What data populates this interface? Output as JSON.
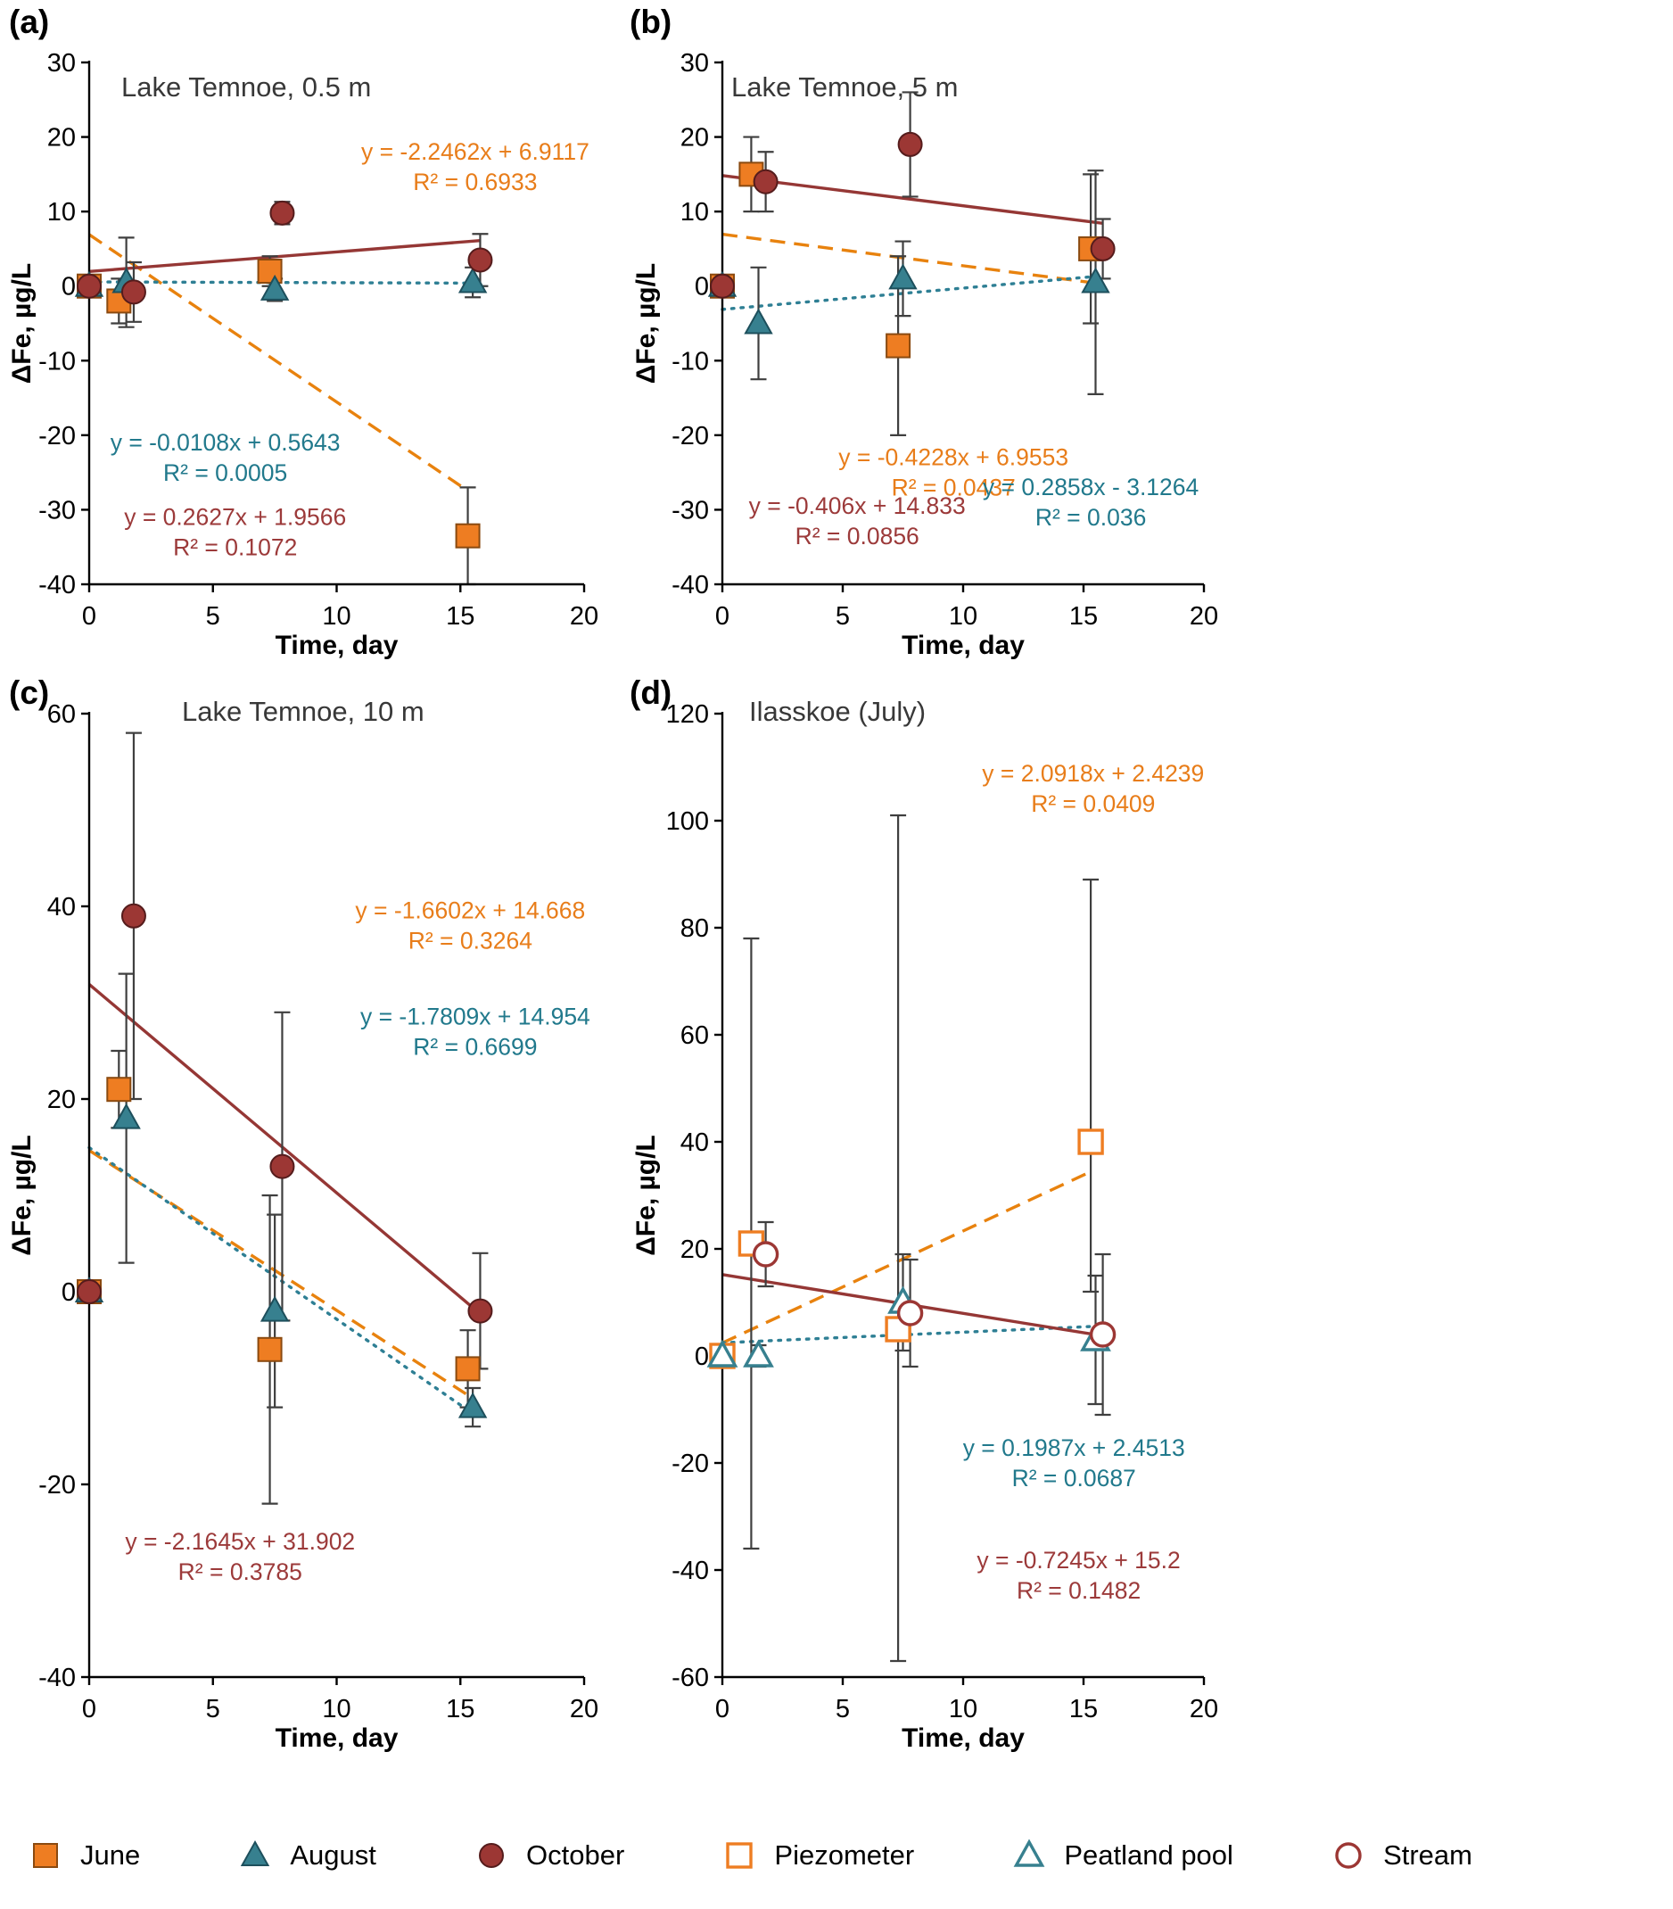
{
  "figure": {
    "background": "#FFFFFF"
  },
  "colors": {
    "orange": {
      "fill": "#EE7D22",
      "stroke": "#8A4A10",
      "line": "#E8820E",
      "text": "#E87D1A"
    },
    "teal": {
      "fill": "#37808F",
      "stroke": "#1D4F5C",
      "line": "#2E7F94",
      "text": "#21798C"
    },
    "darkred": {
      "fill": "#9C3734",
      "stroke": "#551C1C",
      "line": "#953735",
      "text": "#9C3A3A"
    },
    "axis": "#000000",
    "error": "#3F3F3F"
  },
  "legend": [
    {
      "label": "June",
      "marker": "square",
      "color": "orange",
      "filled": true
    },
    {
      "label": "August",
      "marker": "triangle",
      "color": "teal",
      "filled": true
    },
    {
      "label": "October",
      "marker": "circle",
      "color": "darkred",
      "filled": true
    },
    {
      "label": "Piezometer",
      "marker": "square",
      "color": "orange",
      "filled": false
    },
    {
      "label": "Peatland pool",
      "marker": "triangle",
      "color": "teal",
      "filled": false
    },
    {
      "label": "Stream",
      "marker": "circle",
      "color": "darkred",
      "filled": false
    }
  ],
  "chart_data": {
    "type": "scatter",
    "panels": [
      {
        "label": "(a)",
        "title": "Lake Temnoe, 0.5 m",
        "xlabel": "Time, day",
        "ylabel": "ΔFe, µg/L",
        "xlim": [
          0,
          20
        ],
        "ylim": [
          -40,
          30
        ],
        "xticks": [
          0,
          5,
          10,
          15,
          20
        ],
        "yticks": [
          -40,
          -30,
          -20,
          -10,
          0,
          10,
          20,
          30
        ],
        "series": [
          {
            "name": "June",
            "marker": "square",
            "color": "orange",
            "filled": true,
            "line": "dashed",
            "trend": {
              "slope": -2.2462,
              "intercept": 6.9117,
              "x0": 0,
              "x1": 15.3
            },
            "points": [
              {
                "x": 0,
                "y": 0
              },
              {
                "x": 1.2,
                "y": -2,
                "e": 3
              },
              {
                "x": 7.3,
                "y": 2,
                "e": 2
              },
              {
                "x": 15.3,
                "y": -33.5,
                "e": 6.5
              }
            ]
          },
          {
            "name": "August",
            "marker": "triangle",
            "color": "teal",
            "filled": true,
            "line": "dotted",
            "trend": {
              "slope": -0.0108,
              "intercept": 0.5643,
              "x0": 0,
              "x1": 15.6
            },
            "points": [
              {
                "x": 0,
                "y": 0
              },
              {
                "x": 1.5,
                "y": 0.5,
                "e": 6
              },
              {
                "x": 7.5,
                "y": -0.5,
                "e": 1.5
              },
              {
                "x": 15.5,
                "y": 0.5,
                "e": 2
              }
            ]
          },
          {
            "name": "October",
            "marker": "circle",
            "color": "darkred",
            "filled": true,
            "line": "solid",
            "trend": {
              "slope": 0.2627,
              "intercept": 1.9566,
              "x0": 0,
              "x1": 15.8
            },
            "points": [
              {
                "x": 0,
                "y": 0
              },
              {
                "x": 1.8,
                "y": -0.8,
                "e": 4
              },
              {
                "x": 7.8,
                "y": 9.8,
                "e": 1.5
              },
              {
                "x": 15.8,
                "y": 3.5,
                "e": 3.5
              }
            ]
          }
        ],
        "annotations": [
          {
            "lines": [
              "y = -2.2462x + 6.9117",
              "R² = 0.6933"
            ],
            "x": 15.6,
            "y": 16,
            "color": "orange"
          },
          {
            "lines": [
              "y = -0.0108x + 0.5643",
              "R² = 0.0005"
            ],
            "x": 5.5,
            "y": -23,
            "color": "teal"
          },
          {
            "lines": [
              "y = 0.2627x + 1.9566",
              "R² = 0.1072"
            ],
            "x": 5.9,
            "y": -33,
            "color": "darkred"
          }
        ]
      },
      {
        "label": "(b)",
        "title": "Lake Temnoe, 5 m",
        "xlabel": "Time, day",
        "ylabel": "ΔFe, µg/L",
        "xlim": [
          0,
          20
        ],
        "ylim": [
          -40,
          30
        ],
        "xticks": [
          0,
          5,
          10,
          15,
          20
        ],
        "yticks": [
          -40,
          -30,
          -20,
          -10,
          0,
          10,
          20,
          30
        ],
        "series": [
          {
            "name": "June",
            "marker": "square",
            "color": "orange",
            "filled": true,
            "line": "dashed",
            "trend": {
              "slope": -0.4228,
              "intercept": 6.9553,
              "x0": 0,
              "x1": 15.5
            },
            "points": [
              {
                "x": 0,
                "y": 0
              },
              {
                "x": 1.2,
                "y": 15,
                "e": 5
              },
              {
                "x": 7.3,
                "y": -8,
                "e": 12
              },
              {
                "x": 15.3,
                "y": 5,
                "e": 10
              }
            ]
          },
          {
            "name": "August",
            "marker": "triangle",
            "color": "teal",
            "filled": true,
            "line": "dotted",
            "trend": {
              "slope": 0.2858,
              "intercept": -3.1264,
              "x0": 0,
              "x1": 15.6
            },
            "points": [
              {
                "x": 0,
                "y": 0
              },
              {
                "x": 1.5,
                "y": -5,
                "e": 7.5
              },
              {
                "x": 7.5,
                "y": 1,
                "e": 5
              },
              {
                "x": 15.5,
                "y": 0.5,
                "e": 15
              }
            ]
          },
          {
            "name": "October",
            "marker": "circle",
            "color": "darkred",
            "filled": true,
            "line": "solid",
            "trend": {
              "slope": -0.406,
              "intercept": 14.833,
              "x0": 0,
              "x1": 15.8
            },
            "points": [
              {
                "x": 0,
                "y": 0
              },
              {
                "x": 1.8,
                "y": 14,
                "e": 4
              },
              {
                "x": 7.8,
                "y": 19,
                "e": 7
              },
              {
                "x": 15.8,
                "y": 5,
                "e": 4
              }
            ]
          }
        ],
        "annotations": [
          {
            "lines": [
              "y = -0.4228x + 6.9553",
              "R² = 0.0437"
            ],
            "x": 9.6,
            "y": -25,
            "color": "orange"
          },
          {
            "lines": [
              "y = -0.406x + 14.833",
              "R² = 0.0856"
            ],
            "x": 5.6,
            "y": -31.5,
            "color": "darkred"
          },
          {
            "lines": [
              "y = 0.2858x - 3.1264",
              "R² = 0.036"
            ],
            "x": 15.3,
            "y": -29,
            "color": "teal"
          }
        ]
      },
      {
        "label": "(c)",
        "title": "Lake Temnoe, 10 m",
        "xlabel": "Time, day",
        "ylabel": "ΔFe, µg/L",
        "xlim": [
          0,
          20
        ],
        "ylim": [
          -40,
          60
        ],
        "xticks": [
          0,
          5,
          10,
          15,
          20
        ],
        "yticks": [
          -40,
          -20,
          0,
          20,
          40,
          60
        ],
        "series": [
          {
            "name": "June",
            "marker": "square",
            "color": "orange",
            "filled": true,
            "line": "dashed",
            "trend": {
              "slope": -1.6602,
              "intercept": 14.668,
              "x0": 0,
              "x1": 15.5
            },
            "points": [
              {
                "x": 0,
                "y": 0
              },
              {
                "x": 1.2,
                "y": 21,
                "e": 4
              },
              {
                "x": 7.3,
                "y": -6,
                "e": 16
              },
              {
                "x": 15.3,
                "y": -8,
                "e": 4
              }
            ]
          },
          {
            "name": "August",
            "marker": "triangle",
            "color": "teal",
            "filled": true,
            "line": "dotted",
            "trend": {
              "slope": -1.7809,
              "intercept": 14.954,
              "x0": 0,
              "x1": 15.6
            },
            "points": [
              {
                "x": 0,
                "y": 0
              },
              {
                "x": 1.5,
                "y": 18,
                "e": 15
              },
              {
                "x": 7.5,
                "y": -2,
                "e": 10
              },
              {
                "x": 15.5,
                "y": -12,
                "e": 2
              }
            ]
          },
          {
            "name": "October",
            "marker": "circle",
            "color": "darkred",
            "filled": true,
            "line": "solid",
            "trend": {
              "slope": -2.1645,
              "intercept": 31.902,
              "x0": 0,
              "x1": 15.8
            },
            "points": [
              {
                "x": 0,
                "y": 0
              },
              {
                "x": 1.8,
                "y": 39,
                "e": 19
              },
              {
                "x": 7.8,
                "y": 13,
                "e": 16
              },
              {
                "x": 15.8,
                "y": -2,
                "e": 6
              }
            ]
          }
        ],
        "annotations": [
          {
            "lines": [
              "y = -1.6602x + 14.668",
              "R² = 0.3264"
            ],
            "x": 15.4,
            "y": 38,
            "color": "orange"
          },
          {
            "lines": [
              "y = -1.7809x + 14.954",
              "R² = 0.6699"
            ],
            "x": 15.6,
            "y": 27,
            "color": "teal"
          },
          {
            "lines": [
              "y = -2.1645x + 31.902",
              "R² = 0.3785"
            ],
            "x": 6.1,
            "y": -27.5,
            "color": "darkred"
          }
        ]
      },
      {
        "label": "(d)",
        "title": "Ilasskoe (July)",
        "xlabel": "Time, day",
        "ylabel": "ΔFe, µg/L",
        "xlim": [
          0,
          20
        ],
        "ylim": [
          -60,
          120
        ],
        "xticks": [
          0,
          5,
          10,
          15,
          20
        ],
        "yticks": [
          -60,
          -40,
          -20,
          0,
          20,
          40,
          60,
          80,
          100,
          120
        ],
        "series": [
          {
            "name": "Piezometer",
            "marker": "square",
            "color": "orange",
            "filled": false,
            "line": "dashed",
            "trend": {
              "slope": 2.0918,
              "intercept": 2.4239,
              "x0": 0,
              "x1": 15.3
            },
            "points": [
              {
                "x": 0,
                "y": 0
              },
              {
                "x": 1.2,
                "y": 21,
                "e": 57
              },
              {
                "x": 7.3,
                "y": 5,
                "ep": 96,
                "em": 62
              },
              {
                "x": 15.3,
                "y": 40,
                "ep": 49,
                "em": 28
              }
            ]
          },
          {
            "name": "Peatland pool",
            "marker": "triangle",
            "color": "teal",
            "filled": false,
            "line": "dotted",
            "trend": {
              "slope": 0.1987,
              "intercept": 2.4513,
              "x0": 0,
              "x1": 15.8
            },
            "points": [
              {
                "x": 0,
                "y": 0
              },
              {
                "x": 1.5,
                "y": 0,
                "e": 2
              },
              {
                "x": 7.5,
                "y": 10,
                "e": 9
              },
              {
                "x": 15.5,
                "y": 3,
                "e": 12
              }
            ]
          },
          {
            "name": "Stream",
            "marker": "circle",
            "color": "darkred",
            "filled": false,
            "line": "solid",
            "trend": {
              "slope": -0.7245,
              "intercept": 15.2,
              "x0": 0,
              "x1": 15.8
            },
            "points": [
              {
                "x": 1.8,
                "y": 19,
                "e": 6
              },
              {
                "x": 7.8,
                "y": 8,
                "e": 10
              },
              {
                "x": 15.8,
                "y": 4,
                "e": 15
              }
            ]
          }
        ],
        "annotations": [
          {
            "lines": [
              "y = 2.0918x + 2.4239",
              "R² = 0.0409"
            ],
            "x": 15.4,
            "y": 106,
            "color": "orange"
          },
          {
            "lines": [
              "y = 0.1987x + 2.4513",
              "R² = 0.0687"
            ],
            "x": 14.6,
            "y": -20,
            "color": "teal"
          },
          {
            "lines": [
              "y = -0.7245x + 15.2",
              "R² = 0.1482"
            ],
            "x": 14.8,
            "y": -41,
            "color": "darkred"
          }
        ]
      }
    ]
  }
}
